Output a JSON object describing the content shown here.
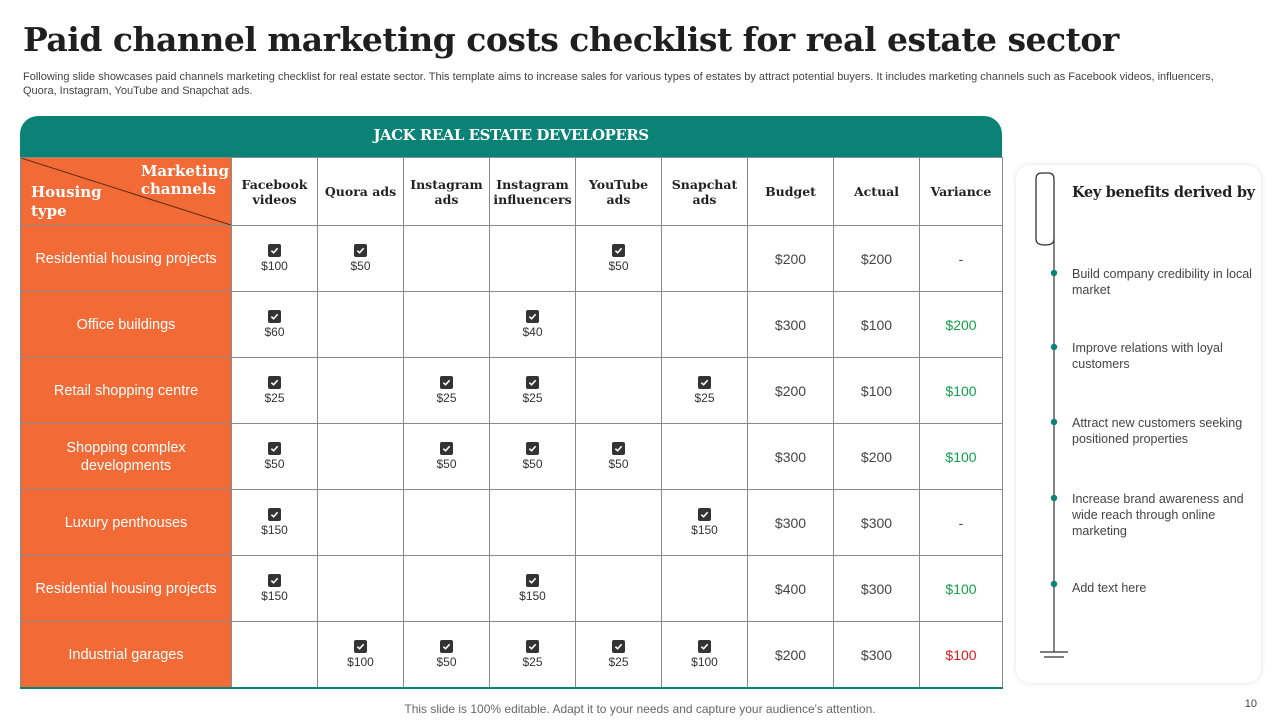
{
  "title": "Paid channel marketing costs checklist for real estate sector",
  "subtitle": "Following slide showcases paid channels marketing checklist for real estate sector. This template aims to increase sales for various types of estates by attract potential buyers. It includes marketing channels such as Facebook videos, influencers, Quora, Instagram, YouTube and Snapchat ads.",
  "table": {
    "banner": "JACK REAL ESTATE DEVELOPERS",
    "corner_top": "Marketing\nchannels",
    "corner_bottom": "Housing\ntype",
    "headers": [
      "Facebook videos",
      "Quora ads",
      "Instagram ads",
      "Instagram influencers",
      "YouTube ads",
      "Snapchat ads",
      "Budget",
      "Actual",
      "Variance"
    ],
    "rows": [
      {
        "type": "Residential housing projects",
        "cells": [
          "$100",
          "$50",
          "",
          "",
          "$50",
          ""
        ],
        "budget": "$200",
        "actual": "$200",
        "variance": "-",
        "variance_color": "none"
      },
      {
        "type": "Office buildings",
        "cells": [
          "$60",
          "",
          "",
          "$40",
          "",
          ""
        ],
        "budget": "$300",
        "actual": "$100",
        "variance": "$200",
        "variance_color": "green"
      },
      {
        "type": "Retail shopping centre",
        "cells": [
          "$25",
          "",
          "$25",
          "$25",
          "",
          "$25"
        ],
        "budget": "$200",
        "actual": "$100",
        "variance": "$100",
        "variance_color": "green"
      },
      {
        "type": "Shopping complex developments",
        "cells": [
          "$50",
          "",
          "$50",
          "$50",
          "$50",
          ""
        ],
        "budget": "$300",
        "actual": "$200",
        "variance": "$100",
        "variance_color": "green"
      },
      {
        "type": "Luxury penthouses",
        "cells": [
          "$150",
          "",
          "",
          "",
          "",
          "$150"
        ],
        "budget": "$300",
        "actual": "$300",
        "variance": "-",
        "variance_color": "none"
      },
      {
        "type": "Residential housing projects",
        "cells": [
          "$150",
          "",
          "",
          "$150",
          "",
          ""
        ],
        "budget": "$400",
        "actual": "$300",
        "variance": "$100",
        "variance_color": "green"
      },
      {
        "type": "Industrial garages",
        "cells": [
          "",
          "$100",
          "$50",
          "$25",
          "$25",
          "$100"
        ],
        "budget": "$200",
        "actual": "$300",
        "variance": "$100",
        "variance_color": "red"
      }
    ]
  },
  "panel": {
    "title": "Key benefits derived by real estate sector from paid channel marketing :",
    "bullets": [
      "Build company credibility in local market",
      "Improve  relations with loyal customers",
      "Attract new customers seeking positioned properties",
      "Increase brand awareness and wide reach through online marketing",
      "Add text here"
    ]
  },
  "footer": "This slide is 100% editable. Adapt it to your needs and capture your audience's attention.",
  "page_number": "10",
  "colors": {
    "accent_teal": "#0a8276",
    "accent_orange": "#f26a35",
    "positive": "#12a14a",
    "negative": "#e3161b",
    "checkbox": "#333333"
  },
  "icons": {
    "checkbox": "checkbox-checked-icon",
    "panel_decor": "paperclip-icon"
  }
}
